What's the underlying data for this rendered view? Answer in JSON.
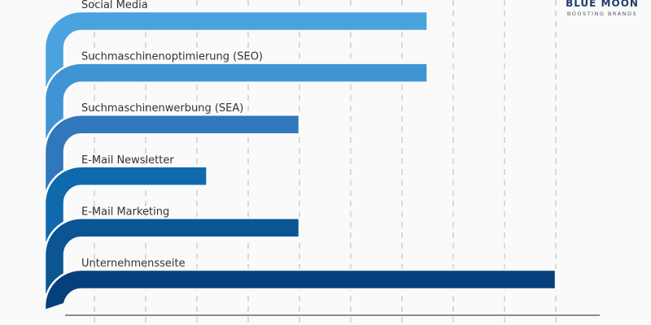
{
  "chart_data": {
    "type": "bar",
    "orientation": "horizontal",
    "categories": [
      "Social Media",
      "Suchmaschinenoptimierung (SEO)",
      "Suchmaschinenwerbung (SEA)",
      "E-Mail Newsletter",
      "E-Mail Marketing",
      "Unternehmensseite"
    ],
    "values": [
      75,
      75,
      50,
      32,
      50,
      100
    ],
    "colors": [
      "#4aa3de",
      "#3f94d3",
      "#2e78bb",
      "#0e6aad",
      "#0a5592",
      "#053f7c"
    ],
    "xlim": [
      0,
      100
    ],
    "xticks": [
      "10%",
      "20%",
      "30%",
      "40%",
      "50%",
      "60%",
      "70%",
      "80%",
      "90%",
      "100%"
    ],
    "grid": true
  },
  "logo": {
    "title": "BLUE MOON",
    "subtitle": "BOOSTING BRANDS"
  }
}
